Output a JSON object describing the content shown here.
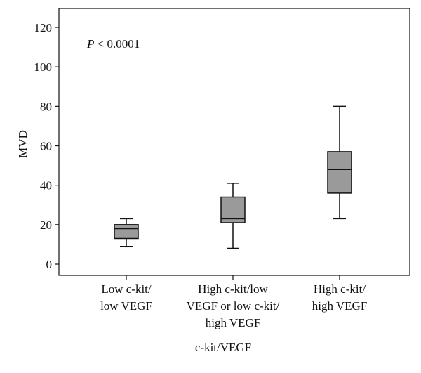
{
  "chart_data": {
    "type": "box",
    "ylabel": "MVD",
    "xlabel": "c-kit/VEGF",
    "ylim": [
      -5,
      125
    ],
    "yticks": [
      0,
      20,
      40,
      60,
      80,
      100,
      120
    ],
    "annotation": {
      "italic": "P",
      "text": " < 0.0001"
    },
    "groups": [
      {
        "label_lines": [
          "Low c-kit/",
          "low VEGF"
        ],
        "min": 9,
        "q1": 13,
        "median": 18,
        "q3": 20,
        "max": 23
      },
      {
        "label_lines": [
          "High c-kit/low",
          "VEGF or low c-kit/",
          "high VEGF"
        ],
        "min": 8,
        "q1": 21,
        "median": 23,
        "q3": 34,
        "max": 41
      },
      {
        "label_lines": [
          "High c-kit/",
          "high VEGF"
        ],
        "min": 23,
        "q1": 36,
        "median": 48,
        "q3": 57,
        "max": 80
      }
    ]
  }
}
